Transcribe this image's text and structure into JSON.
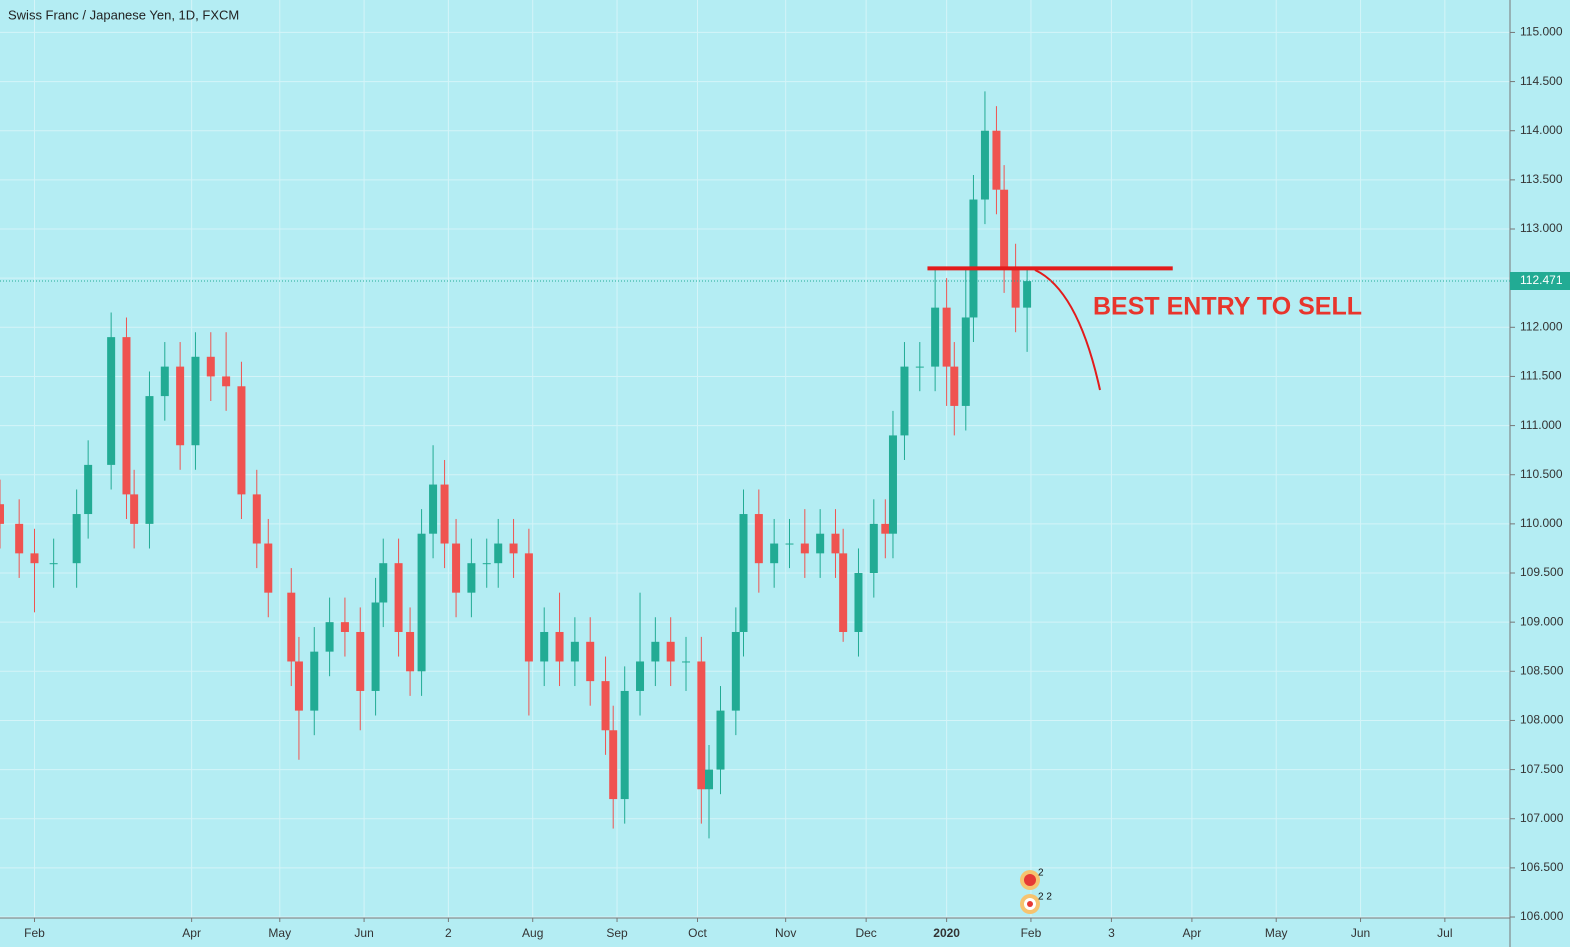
{
  "chart_data": {
    "type": "candlestick",
    "title": "Swiss Franc / Japanese Yen, 1D, FXCM",
    "x": [
      0,
      5,
      9,
      14,
      20,
      23,
      29,
      33,
      35,
      39,
      43,
      47,
      51,
      55,
      59,
      63,
      67,
      70,
      76,
      78,
      82,
      86,
      90,
      94,
      98,
      100,
      104,
      107,
      110,
      113,
      116,
      119,
      123,
      127,
      130,
      134,
      138,
      142,
      146,
      150,
      154,
      158,
      160,
      163,
      167,
      171,
      175,
      179,
      183,
      185,
      188,
      192,
      194,
      198,
      202,
      206,
      210,
      214,
      218,
      220,
      224,
      228,
      231,
      233,
      236,
      240,
      244,
      247,
      249,
      252,
      254,
      257,
      260,
      262,
      265,
      268
    ],
    "open": [
      110.2,
      110.0,
      109.7,
      109.6,
      109.6,
      110.1,
      110.6,
      111.9,
      110.3,
      110.0,
      111.3,
      111.6,
      110.8,
      111.7,
      111.5,
      111.4,
      110.3,
      109.8,
      109.3,
      108.6,
      108.1,
      108.7,
      109.0,
      108.9,
      108.3,
      109.2,
      109.6,
      108.9,
      108.5,
      109.9,
      110.4,
      109.8,
      109.3,
      109.6,
      109.6,
      109.8,
      109.7,
      108.6,
      108.9,
      108.6,
      108.8,
      108.4,
      107.9,
      107.2,
      108.3,
      108.6,
      108.8,
      108.6,
      108.6,
      107.3,
      107.5,
      108.1,
      108.9,
      110.1,
      109.6,
      109.8,
      109.8,
      109.7,
      109.9,
      109.7,
      108.9,
      109.5,
      110.0,
      109.9,
      110.9,
      111.6,
      111.6,
      112.2,
      111.6,
      111.2,
      112.1,
      113.3,
      114.0,
      113.4,
      112.6,
      112.2
    ],
    "high": [
      110.45,
      110.25,
      109.95,
      109.85,
      110.35,
      110.85,
      112.15,
      112.1,
      110.55,
      111.55,
      111.85,
      111.85,
      111.95,
      111.95,
      111.95,
      111.65,
      110.55,
      110.05,
      109.55,
      108.85,
      108.95,
      109.25,
      109.25,
      109.15,
      109.45,
      109.85,
      109.85,
      109.15,
      110.15,
      110.8,
      110.65,
      110.05,
      109.85,
      109.85,
      110.05,
      110.05,
      109.95,
      109.15,
      109.3,
      109.05,
      109.05,
      108.65,
      108.15,
      108.55,
      109.3,
      109.05,
      109.05,
      108.85,
      108.85,
      107.75,
      108.35,
      109.15,
      110.35,
      110.35,
      110.05,
      110.05,
      110.15,
      110.15,
      110.15,
      109.95,
      109.75,
      110.25,
      110.25,
      111.15,
      111.85,
      111.85,
      112.6,
      112.5,
      111.85,
      112.6,
      113.55,
      114.4,
      114.25,
      113.65,
      112.85,
      112.6
    ],
    "low": [
      109.75,
      109.45,
      109.1,
      109.35,
      109.35,
      109.85,
      110.35,
      110.05,
      109.75,
      109.75,
      111.05,
      110.55,
      110.55,
      111.25,
      111.15,
      110.05,
      109.55,
      109.05,
      108.35,
      107.6,
      107.85,
      108.45,
      108.65,
      107.9,
      108.05,
      108.95,
      108.65,
      108.25,
      108.25,
      109.65,
      109.55,
      109.05,
      109.05,
      109.35,
      109.35,
      109.45,
      108.05,
      108.35,
      108.35,
      108.35,
      108.15,
      107.65,
      106.9,
      106.95,
      108.05,
      108.35,
      108.35,
      108.3,
      106.95,
      106.8,
      107.25,
      107.85,
      108.65,
      109.3,
      109.35,
      109.55,
      109.45,
      109.45,
      109.45,
      108.8,
      108.65,
      109.25,
      109.65,
      109.65,
      110.65,
      111.35,
      111.35,
      111.2,
      110.9,
      110.95,
      111.85,
      113.05,
      113.15,
      112.35,
      111.95,
      111.75
    ],
    "close": [
      110.0,
      109.7,
      109.6,
      109.6,
      110.1,
      110.6,
      111.9,
      110.3,
      110.0,
      111.3,
      111.6,
      110.8,
      111.7,
      111.5,
      111.4,
      110.3,
      109.8,
      109.3,
      108.6,
      108.1,
      108.7,
      109.0,
      108.9,
      108.3,
      109.2,
      109.6,
      108.9,
      108.5,
      109.9,
      110.4,
      109.8,
      109.3,
      109.6,
      109.6,
      109.8,
      109.7,
      108.6,
      108.9,
      108.6,
      108.8,
      108.4,
      107.9,
      107.2,
      108.3,
      108.6,
      108.8,
      108.6,
      108.6,
      107.3,
      107.5,
      108.1,
      108.9,
      110.1,
      109.6,
      109.8,
      109.8,
      109.7,
      109.9,
      109.7,
      108.9,
      109.5,
      110.0,
      109.9,
      110.9,
      111.6,
      111.6,
      112.2,
      111.6,
      111.2,
      112.1,
      113.3,
      114.0,
      113.4,
      112.6,
      112.2,
      112.47
    ],
    "up_color": "#22ab94",
    "down_color": "#ef5350",
    "xlim": [
      0,
      394
    ],
    "xticks": [
      {
        "value": 9,
        "label": "Feb"
      },
      {
        "value": 50,
        "label": "Apr"
      },
      {
        "value": 73,
        "label": "May"
      },
      {
        "value": 95,
        "label": "Jun"
      },
      {
        "value": 117,
        "label": "2"
      },
      {
        "value": 139,
        "label": "Aug"
      },
      {
        "value": 161,
        "label": "Sep"
      },
      {
        "value": 182,
        "label": "Oct"
      },
      {
        "value": 205,
        "label": "Nov"
      },
      {
        "value": 226,
        "label": "Dec"
      },
      {
        "value": 247,
        "label": "2020"
      },
      {
        "value": 269,
        "label": "Feb"
      },
      {
        "value": 290,
        "label": "3"
      },
      {
        "value": 311,
        "label": "Apr"
      },
      {
        "value": 333,
        "label": "May"
      },
      {
        "value": 355,
        "label": "Jun"
      },
      {
        "value": 377,
        "label": "Jul"
      }
    ],
    "ylim": [
      115.33,
      105.99
    ],
    "yticks": [
      {
        "value": 106,
        "label": "106.000"
      },
      {
        "value": 106.5,
        "label": "106.500"
      },
      {
        "value": 107,
        "label": "107.000"
      },
      {
        "value": 107.5,
        "label": "107.500"
      },
      {
        "value": 108,
        "label": "108.000"
      },
      {
        "value": 108.5,
        "label": "108.500"
      },
      {
        "value": 109,
        "label": "109.000"
      },
      {
        "value": 109.5,
        "label": "109.500"
      },
      {
        "value": 110,
        "label": "110.000"
      },
      {
        "value": 110.5,
        "label": "110.500"
      },
      {
        "value": 111,
        "label": "111.000"
      },
      {
        "value": 111.5,
        "label": "111.500"
      },
      {
        "value": 112,
        "label": "112.000"
      },
      {
        "value": 112.5,
        "label": "112.500"
      },
      {
        "value": 113,
        "label": "113.000"
      },
      {
        "value": 113.5,
        "label": "113.500"
      },
      {
        "value": 114,
        "label": "114.000"
      },
      {
        "value": 114.5,
        "label": "114.500"
      },
      {
        "value": 115,
        "label": "115.000"
      }
    ],
    "grid": true,
    "last_price": 112.471,
    "sell_line": {
      "level": 112.6,
      "from": 242,
      "to": 306,
      "color": "#e31b1b"
    },
    "annotation": "BEST ENTRY TO SELL",
    "event_badges": [
      "2",
      "2 2"
    ]
  }
}
